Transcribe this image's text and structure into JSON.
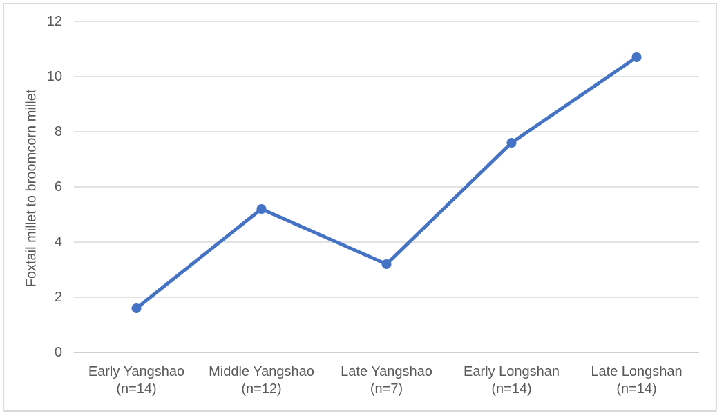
{
  "chart_data": {
    "type": "line",
    "title": "",
    "xlabel": "",
    "ylabel": "Foxtail millet to broomcorn millet",
    "categories": [
      {
        "line1": "Early Yangshao",
        "line2": "(n=14)"
      },
      {
        "line1": "Middle Yangshao",
        "line2": "(n=12)"
      },
      {
        "line1": "Late Yangshao",
        "line2": "(n=7)"
      },
      {
        "line1": "Early Longshan",
        "line2": "(n=14)"
      },
      {
        "line1": "Late Longshan",
        "line2": "(n=14)"
      }
    ],
    "values": [
      1.6,
      5.2,
      3.2,
      7.6,
      10.7
    ],
    "ylim": [
      0,
      12
    ],
    "yticks": [
      0,
      2,
      4,
      6,
      8,
      10,
      12
    ],
    "grid": true,
    "legend": "none",
    "marker": "circle"
  },
  "colors": {
    "line": "#4472C4",
    "marker": "#4472C4",
    "gridline": "#D9D9D9",
    "axis_line": "#BFBFBF",
    "text": "#595959",
    "frame_border": "#D9D9D9",
    "background": "#FFFFFF"
  }
}
